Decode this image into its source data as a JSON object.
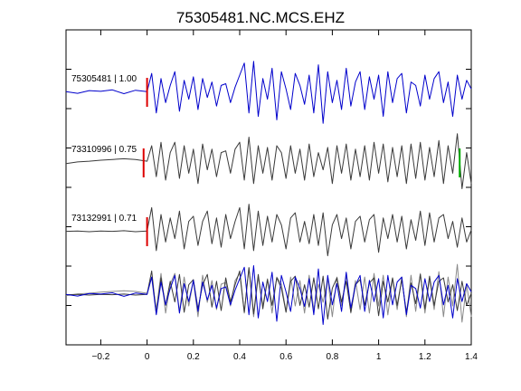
{
  "chart_data": {
    "type": "line",
    "title": "75305481.NC.MCS.EHZ",
    "xlabel": "",
    "ylabel": "",
    "xlim": [
      -0.35,
      1.4
    ],
    "xticks": [
      -0.2,
      0,
      0.2,
      0.4,
      0.6,
      0.8,
      1,
      1.2,
      1.4
    ],
    "xtick_labels": [
      "−0.2",
      "0",
      "0.2",
      "0.4",
      "0.6",
      "0.8",
      "1",
      "1.2",
      "1.4"
    ],
    "ytick_count": 8,
    "grid": false,
    "colors": {
      "reference": "#0000cc",
      "match": "#3a3a3a",
      "overlay_gray": "#8a8a8a",
      "p_pick": "#dd0000",
      "s_pick": "#00aa00"
    },
    "traces": [
      {
        "label": "75305481 | 1.00",
        "color": "#0000cc",
        "p_pick_time": 0.0,
        "x": [
          -0.35,
          -0.3,
          -0.25,
          -0.2,
          -0.15,
          -0.1,
          -0.05,
          0,
          0.02,
          0.04,
          0.06,
          0.08,
          0.1,
          0.12,
          0.14,
          0.16,
          0.18,
          0.2,
          0.22,
          0.24,
          0.26,
          0.28,
          0.3,
          0.32,
          0.34,
          0.36,
          0.38,
          0.4,
          0.42,
          0.44,
          0.46,
          0.48,
          0.5,
          0.52,
          0.54,
          0.56,
          0.58,
          0.6,
          0.62,
          0.64,
          0.66,
          0.68,
          0.7,
          0.72,
          0.74,
          0.76,
          0.78,
          0.8,
          0.82,
          0.84,
          0.86,
          0.88,
          0.9,
          0.92,
          0.94,
          0.96,
          0.98,
          1.0,
          1.02,
          1.04,
          1.06,
          1.08,
          1.1,
          1.12,
          1.14,
          1.16,
          1.18,
          1.2,
          1.22,
          1.24,
          1.26,
          1.28,
          1.3,
          1.32,
          1.34,
          1.36,
          1.38,
          1.4
        ],
        "y": [
          0.02,
          -0.03,
          0.05,
          0.03,
          0.07,
          -0.04,
          0.06,
          0.02,
          0.55,
          -0.6,
          0.4,
          -0.3,
          0.2,
          0.6,
          -0.55,
          0.35,
          -0.2,
          0.45,
          -0.5,
          0.4,
          -0.15,
          0.3,
          -0.4,
          0.2,
          0.25,
          -0.3,
          0.15,
          0.5,
          0.85,
          -0.6,
          0.9,
          -0.7,
          0.4,
          -0.2,
          0.7,
          -0.8,
          0.6,
          0.1,
          -0.5,
          0.55,
          0.2,
          -0.35,
          0.5,
          -0.6,
          0.8,
          -0.9,
          0.6,
          -0.3,
          0.35,
          -0.5,
          0.7,
          -0.4,
          0.3,
          0.6,
          -0.5,
          0.45,
          -0.2,
          0.5,
          -0.7,
          0.6,
          -0.3,
          0.4,
          0.55,
          -0.6,
          0.3,
          0.2,
          -0.4,
          0.5,
          -0.2,
          0.4,
          0.6,
          -0.3,
          0.3,
          -0.7,
          0.5,
          -0.2,
          0.35,
          0.1
        ]
      },
      {
        "label": "73310996 | 0.75",
        "color": "#3a3a3a",
        "p_pick_time": -0.015,
        "s_pick_time": 1.35,
        "x": [
          -0.35,
          -0.3,
          -0.25,
          -0.2,
          -0.15,
          -0.1,
          -0.05,
          0,
          0.02,
          0.04,
          0.06,
          0.08,
          0.1,
          0.12,
          0.14,
          0.16,
          0.18,
          0.2,
          0.22,
          0.24,
          0.26,
          0.28,
          0.3,
          0.32,
          0.34,
          0.36,
          0.38,
          0.4,
          0.42,
          0.44,
          0.46,
          0.48,
          0.5,
          0.52,
          0.54,
          0.56,
          0.58,
          0.6,
          0.62,
          0.64,
          0.66,
          0.68,
          0.7,
          0.72,
          0.74,
          0.76,
          0.78,
          0.8,
          0.82,
          0.84,
          0.86,
          0.88,
          0.9,
          0.92,
          0.94,
          0.96,
          0.98,
          1.0,
          1.02,
          1.04,
          1.06,
          1.08,
          1.1,
          1.12,
          1.14,
          1.16,
          1.18,
          1.2,
          1.22,
          1.24,
          1.26,
          1.28,
          1.3,
          1.32,
          1.34,
          1.36,
          1.38,
          1.4
        ],
        "y": [
          -0.02,
          0.03,
          0.05,
          0.08,
          0.1,
          0.12,
          0.1,
          0.05,
          0.5,
          -0.4,
          0.6,
          -0.5,
          0.3,
          0.6,
          -0.45,
          0.5,
          -0.3,
          0.4,
          -0.6,
          0.55,
          -0.2,
          0.4,
          -0.4,
          0.3,
          0.35,
          -0.3,
          0.4,
          0.6,
          -0.5,
          0.75,
          -0.6,
          0.5,
          -0.3,
          0.45,
          -0.5,
          0.5,
          0.3,
          -0.45,
          0.5,
          -0.3,
          0.4,
          -0.5,
          0.55,
          -0.4,
          0.3,
          -0.2,
          0.45,
          -0.6,
          0.5,
          -0.3,
          0.55,
          -0.5,
          0.4,
          -0.4,
          0.5,
          -0.5,
          0.6,
          -0.3,
          0.55,
          -0.55,
          0.45,
          -0.4,
          0.5,
          -0.6,
          0.55,
          -0.45,
          0.6,
          -0.5,
          0.45,
          -0.4,
          0.65,
          -0.6,
          0.5,
          -0.3,
          0.85,
          -0.75,
          0.3,
          -0.6
        ]
      },
      {
        "label": "73132991 | 0.71",
        "color": "#3a3a3a",
        "p_pick_time": 0.0,
        "x": [
          -0.35,
          -0.3,
          -0.25,
          -0.2,
          -0.15,
          -0.1,
          -0.05,
          0,
          0.02,
          0.04,
          0.06,
          0.08,
          0.1,
          0.12,
          0.14,
          0.16,
          0.18,
          0.2,
          0.22,
          0.24,
          0.26,
          0.28,
          0.3,
          0.32,
          0.34,
          0.36,
          0.38,
          0.4,
          0.42,
          0.44,
          0.46,
          0.48,
          0.5,
          0.52,
          0.54,
          0.56,
          0.58,
          0.6,
          0.62,
          0.64,
          0.66,
          0.68,
          0.7,
          0.72,
          0.74,
          0.76,
          0.78,
          0.8,
          0.82,
          0.84,
          0.86,
          0.88,
          0.9,
          0.92,
          0.94,
          0.96,
          0.98,
          1.0,
          1.02,
          1.04,
          1.06,
          1.08,
          1.1,
          1.12,
          1.14,
          1.16,
          1.18,
          1.2,
          1.22,
          1.24,
          1.26,
          1.28,
          1.3,
          1.32,
          1.34,
          1.36,
          1.38,
          1.4
        ],
        "y": [
          0.01,
          0.02,
          0.0,
          0.02,
          0.01,
          0.03,
          0.0,
          0.02,
          0.7,
          -0.55,
          0.5,
          -0.3,
          0.4,
          -0.2,
          0.6,
          -0.5,
          0.3,
          0.45,
          -0.4,
          0.3,
          0.6,
          -0.35,
          0.4,
          -0.45,
          0.5,
          -0.2,
          0.3,
          0.7,
          -0.5,
          0.8,
          -0.55,
          0.6,
          -0.4,
          0.45,
          -0.3,
          0.5,
          0.2,
          -0.5,
          0.4,
          0.55,
          -0.3,
          0.3,
          -0.35,
          0.5,
          -0.4,
          0.55,
          -0.7,
          0.2,
          0.5,
          -0.2,
          0.4,
          -0.5,
          0.3,
          0.45,
          -0.3,
          0.35,
          0.5,
          -0.6,
          0.4,
          -0.2,
          0.5,
          -0.3,
          0.45,
          -0.5,
          0.35,
          -0.25,
          0.6,
          -0.4,
          0.55,
          -0.3,
          0.4,
          0.5,
          -0.2,
          0.3,
          -0.45,
          0.4,
          -0.3,
          0.05
        ]
      },
      {
        "label": "",
        "color": "overlay",
        "description_hidden": true
      }
    ]
  }
}
